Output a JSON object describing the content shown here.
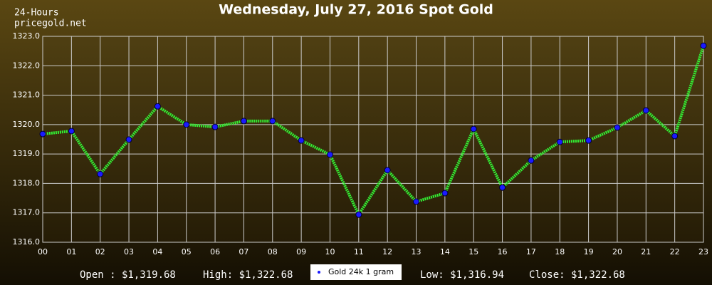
{
  "chart_data": {
    "type": "line",
    "title": "Wednesday, July 27, 2016 Spot Gold",
    "categories": [
      "00",
      "01",
      "02",
      "03",
      "04",
      "05",
      "06",
      "07",
      "08",
      "09",
      "10",
      "11",
      "12",
      "13",
      "14",
      "15",
      "16",
      "17",
      "18",
      "19",
      "20",
      "21",
      "22",
      "23"
    ],
    "series": [
      {
        "name": "Gold 24k 1 gram",
        "color": "#33ee33",
        "marker_color": "#1a1aff",
        "values": [
          1319.68,
          1319.78,
          1318.32,
          1319.49,
          1320.62,
          1320.0,
          1319.92,
          1320.12,
          1320.12,
          1319.46,
          1318.98,
          1316.94,
          1318.45,
          1317.38,
          1317.67,
          1319.85,
          1317.86,
          1318.78,
          1319.41,
          1319.46,
          1319.9,
          1320.48,
          1319.61,
          1322.68
        ]
      }
    ],
    "ylim": [
      1316,
      1323
    ],
    "yticks": [
      {
        "value": 1316,
        "label": "1316.0"
      },
      {
        "value": 1317,
        "label": "1317.0"
      },
      {
        "value": 1318,
        "label": "1318.0"
      },
      {
        "value": 1319,
        "label": "1319.0"
      },
      {
        "value": 1320,
        "label": "1320.0"
      },
      {
        "value": 1321,
        "label": "1321.0"
      },
      {
        "value": 1322,
        "label": "1322.0"
      },
      {
        "value": 1323,
        "label": "1323.0"
      }
    ],
    "grid": true
  },
  "header": {
    "period": "24-Hours",
    "site": "pricegold.net"
  },
  "footer": {
    "open": "Open : $1,319.68",
    "high": "High: $1,322.68",
    "low": "Low: $1,316.94",
    "close": "Close: $1,322.68"
  }
}
